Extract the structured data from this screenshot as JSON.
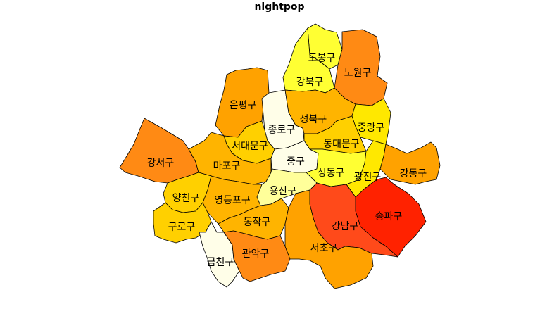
{
  "title": "nightpop",
  "palette": {
    "white": "#fffee8",
    "pale": "#ffff9a",
    "yellow_bright": "#ffff33",
    "yellow": "#ffe800",
    "gold": "#ffd000",
    "orange_light": "#ffb400",
    "orange": "#ffa200",
    "orange_deep": "#ff8a14",
    "red_orange": "#ff4a1a",
    "red": "#ff2200"
  },
  "districts": [
    {
      "id": "dobong",
      "name": "도봉구",
      "color_key": "yellow_bright"
    },
    {
      "id": "nowon",
      "name": "노원구",
      "color_key": "orange_deep"
    },
    {
      "id": "gangbuk",
      "name": "강북구",
      "color_key": "yellow_bright"
    },
    {
      "id": "eunpyeong",
      "name": "은평구",
      "color_key": "orange"
    },
    {
      "id": "jongno",
      "name": "종로구",
      "color_key": "white"
    },
    {
      "id": "seongbuk",
      "name": "성북구",
      "color_key": "orange_light"
    },
    {
      "id": "jungnang",
      "name": "중랑구",
      "color_key": "yellow"
    },
    {
      "id": "seodaemun",
      "name": "서대문구",
      "color_key": "gold"
    },
    {
      "id": "dongdaemun",
      "name": "동대문구",
      "color_key": "gold"
    },
    {
      "id": "gangseo",
      "name": "강서구",
      "color_key": "orange_deep"
    },
    {
      "id": "mapo",
      "name": "마포구",
      "color_key": "orange_light"
    },
    {
      "id": "jung",
      "name": "중구",
      "color_key": "white"
    },
    {
      "id": "seongdong",
      "name": "성동구",
      "color_key": "yellow_bright"
    },
    {
      "id": "gwangjin",
      "name": "광진구",
      "color_key": "yellow"
    },
    {
      "id": "gangdong",
      "name": "강동구",
      "color_key": "orange"
    },
    {
      "id": "yongsan",
      "name": "용산구",
      "color_key": "pale"
    },
    {
      "id": "yangcheon",
      "name": "양천구",
      "color_key": "gold"
    },
    {
      "id": "yeongdeungpo",
      "name": "영등포구",
      "color_key": "orange_light"
    },
    {
      "id": "guro",
      "name": "구로구",
      "color_key": "gold"
    },
    {
      "id": "dongjak",
      "name": "동작구",
      "color_key": "orange_light"
    },
    {
      "id": "songpa",
      "name": "송파구",
      "color_key": "red"
    },
    {
      "id": "gangnam",
      "name": "강남구",
      "color_key": "red_orange"
    },
    {
      "id": "geumcheon",
      "name": "금천구",
      "color_key": "white"
    },
    {
      "id": "gwanak",
      "name": "관악구",
      "color_key": "orange_deep"
    },
    {
      "id": "seocho",
      "name": "서초구",
      "color_key": "orange"
    }
  ]
}
